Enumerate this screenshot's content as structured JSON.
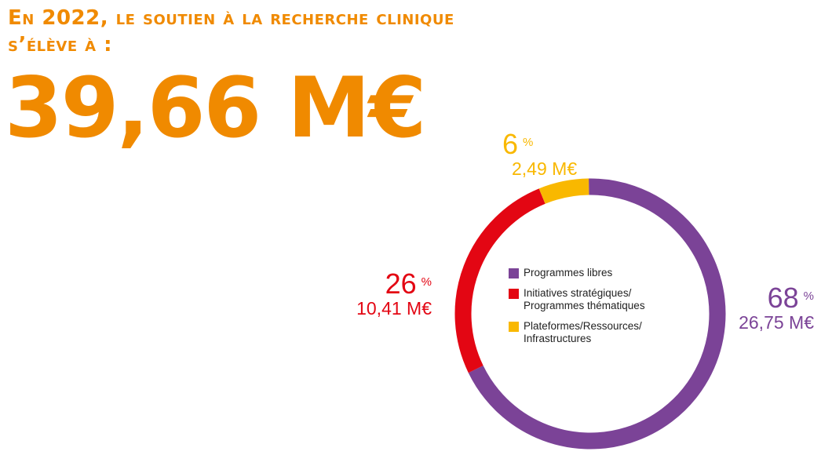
{
  "header": {
    "line1": "En 2022, le soutien à la recherche clinique",
    "line2": "s’élève à  :",
    "total": "39,66 M€"
  },
  "colors": {
    "accent": "#F08A00",
    "purple": "#7B4397",
    "red": "#E30613",
    "yellow": "#F9B800"
  },
  "chart_data": {
    "type": "pie",
    "donut": true,
    "title": "",
    "legend_position": "center",
    "slices": [
      {
        "label": "Programmes libres",
        "percent": 68,
        "value": 26.75,
        "percent_text": "68",
        "amount_text": "26,75 M€",
        "color": "#7B4397"
      },
      {
        "label": "Initiatives stratégiques/\nProgrammes thématiques",
        "percent": 26,
        "value": 10.41,
        "percent_text": "26",
        "amount_text": "10,41 M€",
        "color": "#E30613"
      },
      {
        "label": "Plateformes/Ressources/\nInfrastructures",
        "percent": 6,
        "value": 2.49,
        "percent_text": "6",
        "amount_text": "2,49 M€",
        "color": "#F9B800"
      }
    ],
    "percent_sign": "%"
  }
}
